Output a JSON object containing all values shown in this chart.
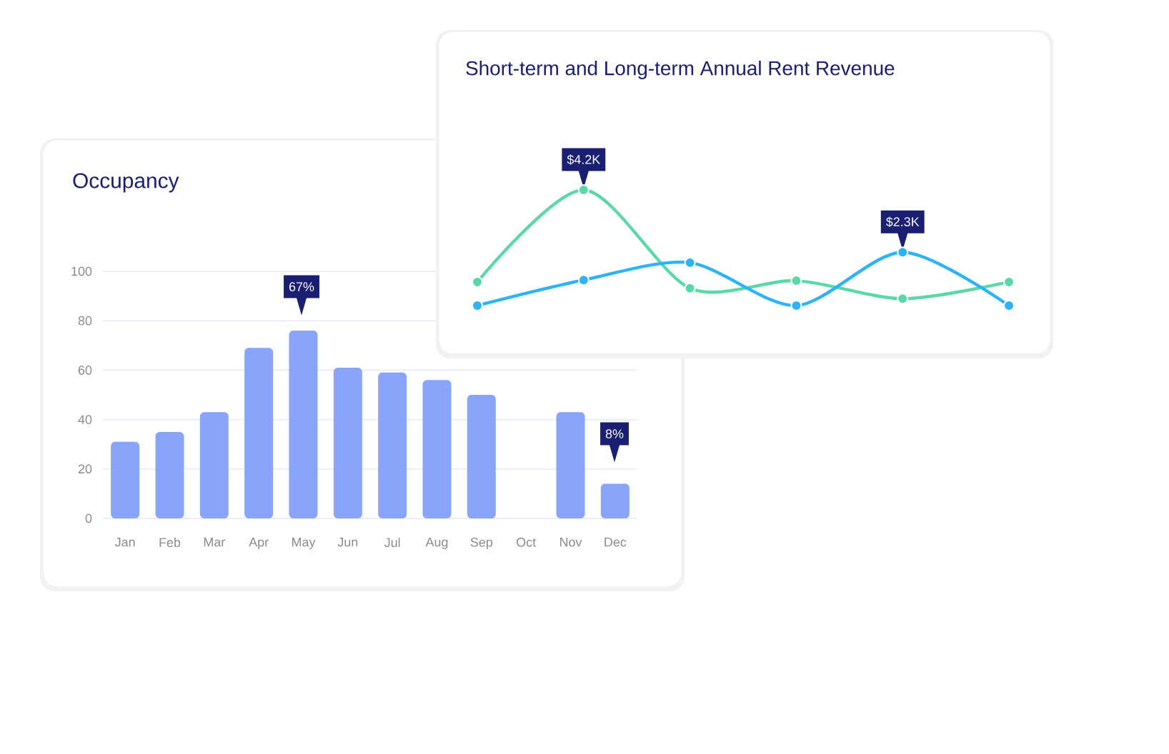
{
  "chart_data": [
    {
      "type": "bar",
      "title": "Occupancy",
      "categories": [
        "Jan",
        "Feb",
        "Mar",
        "Apr",
        "May",
        "Jun",
        "Jul",
        "Aug",
        "Sep",
        "Oct",
        "Nov",
        "Dec"
      ],
      "values": [
        31,
        35,
        43,
        69,
        76,
        61,
        59,
        56,
        50,
        null,
        43,
        14
      ],
      "color": "#88a4fb",
      "ylim": [
        0,
        100
      ],
      "yticks": [
        0,
        20,
        40,
        60,
        80,
        100
      ],
      "grid": "y",
      "annotations": [
        "67%",
        "8%"
      ]
    },
    {
      "type": "line",
      "title": "Short-term and Long-term Annual Rent Revenue",
      "categories": [
        null,
        null,
        null,
        null,
        null,
        null
      ],
      "series": [
        {
          "color": "#5ad8a6",
          "values": [
            1.39,
            4.2,
            1.2,
            1.43,
            0.88,
            1.39
          ],
          "value_labels": [
            null,
            "$4.2K",
            null,
            null,
            null,
            null
          ]
        },
        {
          "color": "#2db3f7",
          "values": [
            0.67,
            1.45,
            1.98,
            0.67,
            2.3,
            0.67
          ],
          "value_labels": [
            null,
            null,
            null,
            null,
            "$2.3K",
            null
          ]
        }
      ],
      "marker": "circle"
    }
  ]
}
